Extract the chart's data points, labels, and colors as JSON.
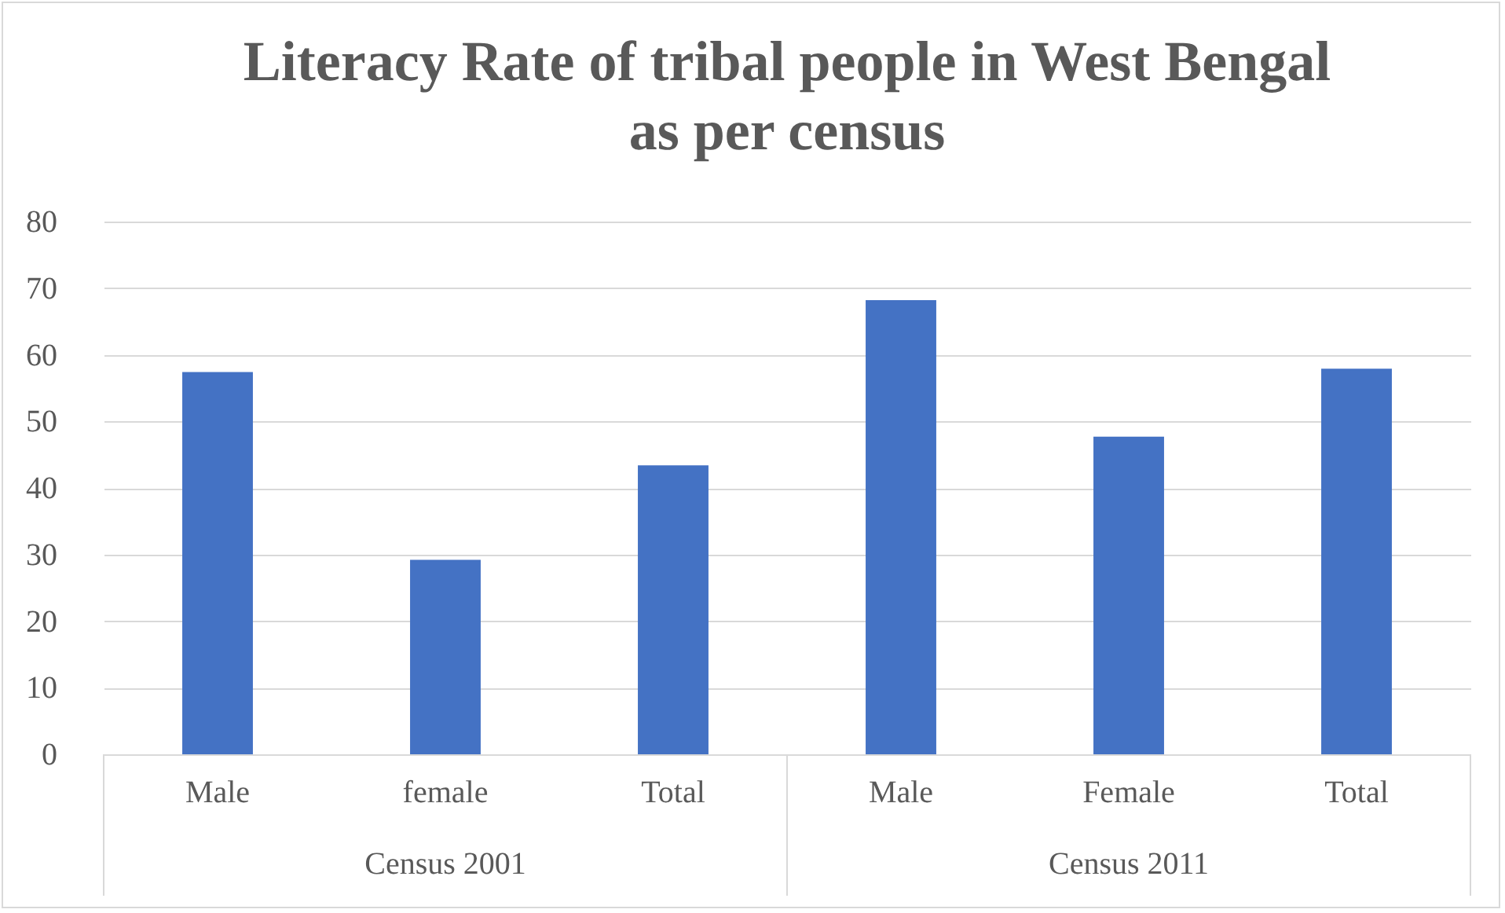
{
  "chart_data": {
    "type": "bar",
    "title": "Literacy Rate of tribal people in West Bengal\nas per census",
    "categories": [
      "Male",
      "female",
      "Total",
      "Male",
      "Female",
      "Total"
    ],
    "values": [
      57.4,
      29.2,
      43.4,
      68.2,
      47.7,
      57.9
    ],
    "color": "#4472c4",
    "ylim": [
      0,
      80
    ],
    "yticks": [
      0,
      10,
      20,
      30,
      40,
      50,
      60,
      70,
      80
    ],
    "grid": "y",
    "annotations": [
      "Census 2001",
      "Census 2011"
    ]
  }
}
